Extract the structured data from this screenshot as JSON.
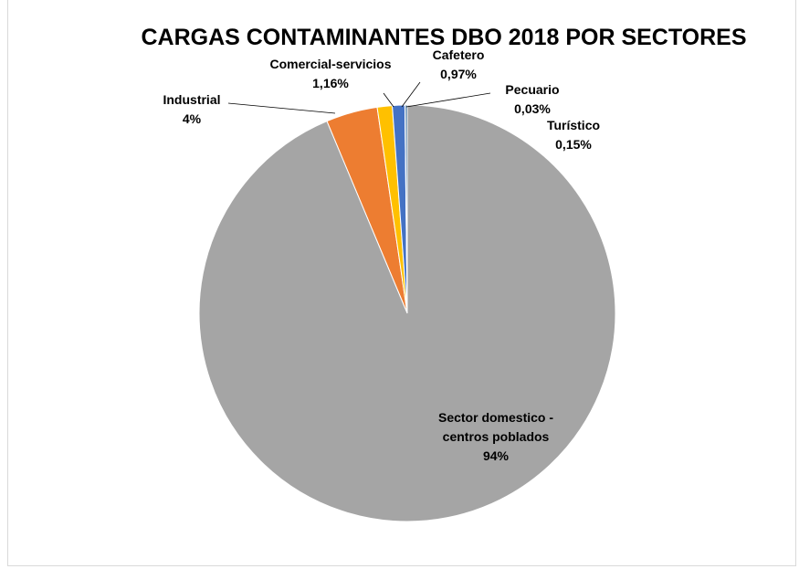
{
  "chart_data": {
    "type": "pie",
    "title": "CARGAS CONTAMINANTES DBO 2018 POR SECTORES",
    "slices": [
      {
        "key": "domestico",
        "label_lines": [
          "Sector domestico -",
          "centros poblados"
        ],
        "pct_label": "94%",
        "value": 93.69,
        "color": "#a5a5a5"
      },
      {
        "key": "industrial",
        "label_lines": [
          "Industrial"
        ],
        "pct_label": "4%",
        "value": 4.0,
        "color": "#ed7d31"
      },
      {
        "key": "comercial",
        "label_lines": [
          "Comercial-servicios"
        ],
        "pct_label": "1,16%",
        "value": 1.16,
        "color": "#ffc000"
      },
      {
        "key": "cafetero",
        "label_lines": [
          "Cafetero"
        ],
        "pct_label": "0,97%",
        "value": 0.97,
        "color": "#4472c4"
      },
      {
        "key": "pecuario",
        "label_lines": [
          "Pecuario"
        ],
        "pct_label": "0,03%",
        "value": 0.03,
        "color": "#70ad47"
      },
      {
        "key": "turistico",
        "label_lines": [
          "Turístico"
        ],
        "pct_label": "0,15%",
        "value": 0.15,
        "color": "#255e91"
      }
    ]
  }
}
